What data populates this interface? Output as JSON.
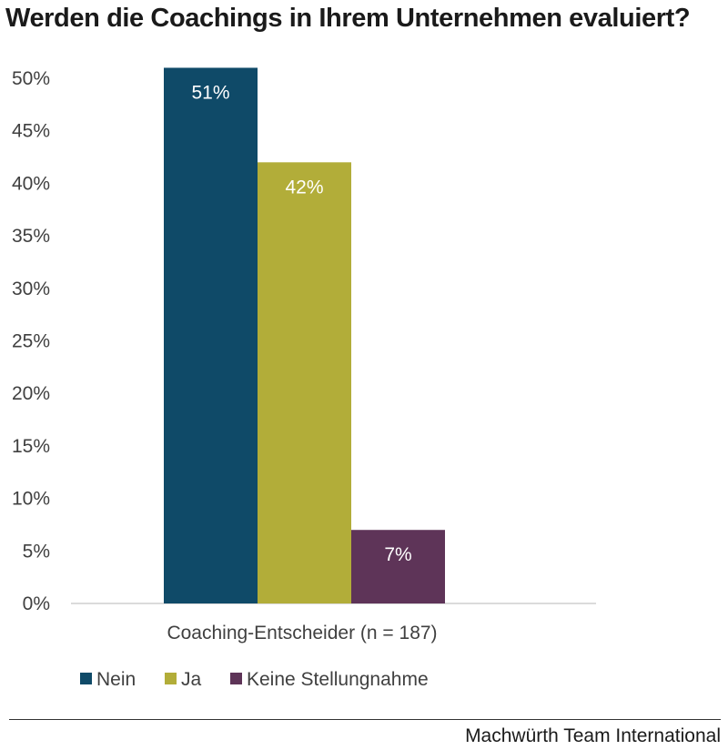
{
  "title": "Werden die Coachings in Ihrem Unternehmen evaluiert?",
  "source": "Machwürth Team International",
  "chart_data": {
    "type": "bar",
    "title": "Werden die Coachings in Ihrem Unternehmen evaluiert?",
    "xlabel": "",
    "ylabel": "",
    "categories": [
      "Coaching-Entscheider (n = 187)"
    ],
    "series": [
      {
        "name": "Nein",
        "values": [
          51
        ],
        "label": "51%",
        "color": "#0f4a68"
      },
      {
        "name": "Ja",
        "values": [
          42
        ],
        "label": "42%",
        "color": "#b2ad39"
      },
      {
        "name": "Keine Stellungnahme",
        "values": [
          7
        ],
        "label": "7%",
        "color": "#5e3458"
      }
    ],
    "ylim": [
      0,
      50
    ],
    "yticks": [
      "0%",
      "5%",
      "10%",
      "15%",
      "20%",
      "25%",
      "30%",
      "35%",
      "40%",
      "45%",
      "50%"
    ],
    "ytick_step": 5,
    "grid": false,
    "legend_position": "bottom-left"
  }
}
